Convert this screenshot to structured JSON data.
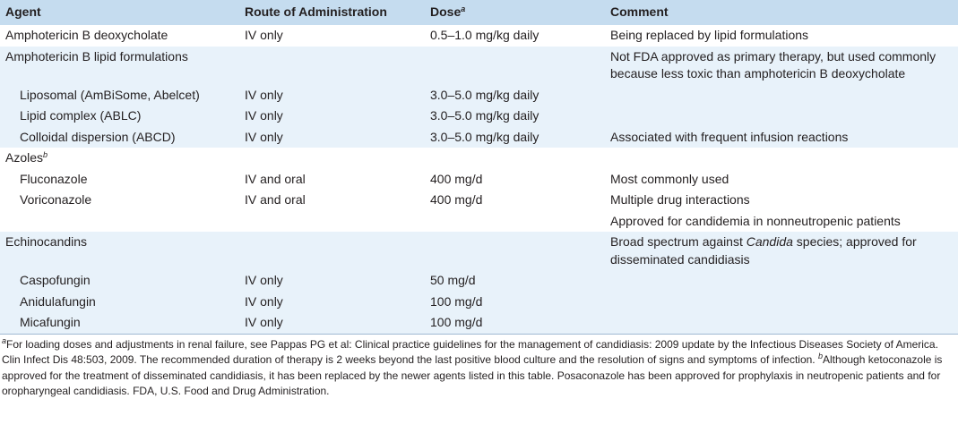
{
  "table": {
    "columns": [
      {
        "text": "Agent"
      },
      {
        "text": "Route of Administration"
      },
      {
        "text": "Dose",
        "note": "a"
      },
      {
        "text": "Comment"
      }
    ],
    "groups": [
      {
        "agent": "Amphotericin B deoxycholate",
        "route": "IV only",
        "dose": "0.5–1.0 mg/kg daily",
        "comment": "Being replaced by lipid formulations",
        "items": []
      },
      {
        "agent": "Amphotericin B lipid formulations",
        "comment": "Not FDA approved as primary therapy, but used commonly because less toxic than amphotericin B deoxycholate",
        "items": [
          {
            "agent": "Liposomal (AmBiSome, Abelcet)",
            "route": "IV only",
            "dose": "3.0–5.0 mg/kg daily"
          },
          {
            "agent": "Lipid complex (ABLC)",
            "route": "IV only",
            "dose": "3.0–5.0 mg/kg daily"
          },
          {
            "agent": "Colloidal dispersion (ABCD)",
            "route": "IV only",
            "dose": "3.0–5.0 mg/kg daily",
            "comment": "Associated with frequent infusion reactions"
          }
        ]
      },
      {
        "agent": "Azoles",
        "agent_note": "b",
        "items": [
          {
            "agent": "Fluconazole",
            "route": "IV and oral",
            "dose": "400 mg/d",
            "comment": "Most commonly used"
          },
          {
            "agent": "Voriconazole",
            "route": "IV and oral",
            "dose": "400 mg/d",
            "comment": "Multiple drug interactions"
          },
          {
            "comment": "Approved for candidemia in nonneutropenic patients"
          }
        ]
      },
      {
        "agent": "Echinocandins",
        "comment": [
          {
            "text": "Broad spectrum against "
          },
          {
            "text": "Candida",
            "italic": true
          },
          {
            "text": " species; approved for disseminated candidiasis"
          }
        ],
        "items": [
          {
            "agent": "Caspofungin",
            "route": "IV only",
            "dose": "50 mg/d"
          },
          {
            "agent": "Anidulafungin",
            "route": "IV only",
            "dose": "100 mg/d"
          },
          {
            "agent": "Micafungin",
            "route": "IV only",
            "dose": "100 mg/d"
          }
        ]
      }
    ]
  },
  "footnotes": [
    {
      "note": "a",
      "text": "For loading doses and adjustments in renal failure, see Pappas PG et al: Clinical practice guidelines for the management of candidiasis: 2009 update by the Infectious Diseases Society of America. Clin Infect Dis 48:503, 2009. The recommended duration of therapy is 2 weeks beyond the last positive blood culture and the resolution of signs and symptoms of infection."
    },
    {
      "note": "b",
      "text": "Although ketoconazole is approved for the treatment of disseminated candidiasis, it has been replaced by the newer agents listed in this table. Posaconazole has been approved for prophylaxis in neutropenic patients and for oropharyngeal candidiasis. FDA, U.S. Food and Drug Administration."
    }
  ]
}
